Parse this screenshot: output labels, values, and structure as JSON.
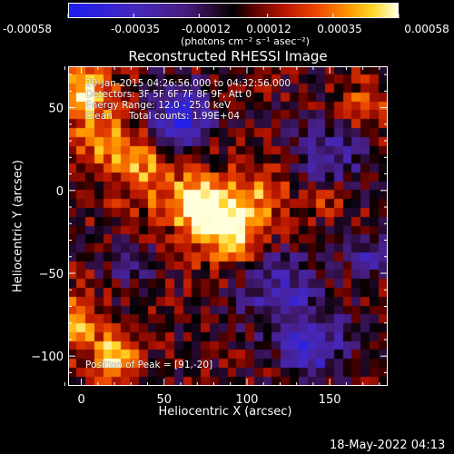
{
  "colorbar": {
    "tick_labels": [
      "-0.00058",
      "-0.00035",
      "-0.00012",
      "0.00012",
      "0.00035",
      "0.00058"
    ],
    "unit_label": "(photons cm⁻² s⁻¹ asec⁻²)",
    "range": [
      -0.00058,
      0.00058
    ]
  },
  "chart_data": {
    "type": "heatmap",
    "title": "Reconstructed RHESSI Image",
    "xlabel": "Heliocentric X (arcsec)",
    "ylabel": "Heliocentric Y (arcsec)",
    "xlim": [
      -8,
      185
    ],
    "ylim": [
      -118,
      75
    ],
    "xticks": [
      0,
      50,
      100,
      150
    ],
    "yticks": [
      50,
      0,
      -50,
      -100
    ],
    "xtick_labels": [
      "0",
      "50",
      "100",
      "150"
    ],
    "ytick_labels": [
      "50",
      "0",
      "-50",
      "-100"
    ],
    "peak_position": [
      91,
      -20
    ],
    "colormap": "rhessi hot-blue"
  },
  "annotations": {
    "time_range": "20-Jan-2015 04:26:56.000 to 04:32:56.000",
    "detectors": "Detectors: 3F 5F 6F 7F 8F 9F, Att 0",
    "energy": "Energy Range: 12.0 - 25.0 keV",
    "clean_label": "Clean",
    "total_counts": "Total counts: 1.99E+04",
    "peak": "Position of Peak = [91,-20]"
  },
  "footer": {
    "timestamp": "18-May-2022 04:13"
  }
}
